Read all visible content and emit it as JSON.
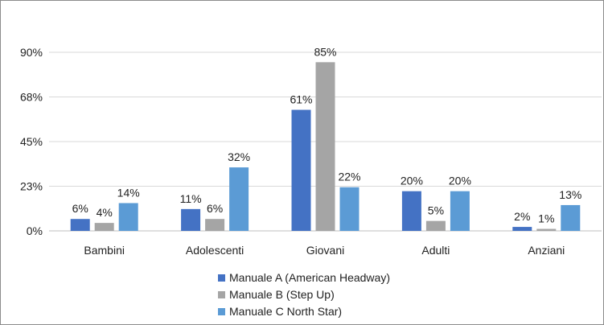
{
  "chart_data": {
    "type": "bar",
    "categories": [
      "Bambini",
      "Adolescenti",
      "Giovani",
      "Adulti",
      "Anziani"
    ],
    "series": [
      {
        "name": "Manuale A (American Headway)",
        "color": "#4472c4",
        "values": [
          6,
          11,
          61,
          20,
          2
        ],
        "labels": [
          "6%",
          "11%",
          "61%",
          "20%",
          "2%"
        ]
      },
      {
        "name": "Manuale B (Step Up)",
        "color": "#a5a5a5",
        "values": [
          4,
          6,
          85,
          5,
          1
        ],
        "labels": [
          "4%",
          "6%",
          "85%",
          "5%",
          "1%"
        ]
      },
      {
        "name": "Manuale C North Star)",
        "color": "#5b9bd5",
        "values": [
          14,
          32,
          22,
          20,
          13
        ],
        "labels": [
          "14%",
          "32%",
          "22%",
          "20%",
          "13%"
        ]
      }
    ],
    "yticks": [
      0,
      22.5,
      45,
      67.5,
      90
    ],
    "ytick_labels": [
      "0%",
      "23%",
      "45%",
      "68%",
      "90%"
    ],
    "ylim": [
      0,
      90
    ],
    "grid": true,
    "legend_position": "bottom"
  }
}
